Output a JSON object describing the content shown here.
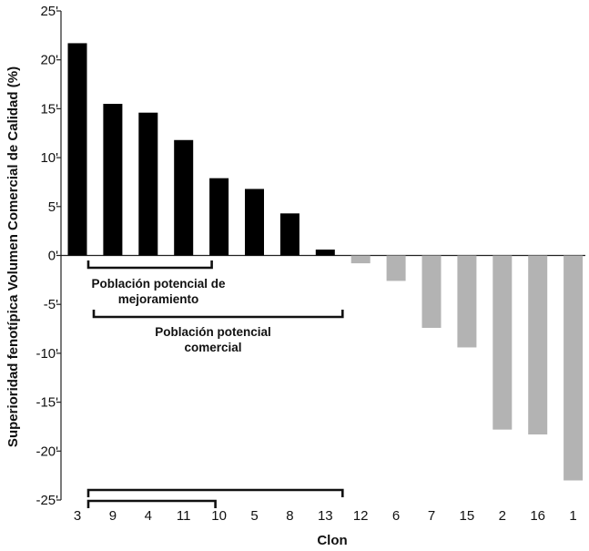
{
  "chart_data": {
    "type": "bar",
    "xlabel": "Clon",
    "ylabel": "Superioridad fenotípica Volumen Comercial de Calidad (%)",
    "ylim": [
      -25,
      25
    ],
    "yticks": [
      25,
      20,
      15,
      10,
      5,
      0,
      -5,
      -10,
      -15,
      -20,
      -25
    ],
    "ytick_labels": [
      "25'",
      "20'",
      "15'",
      "10'",
      "5'",
      "0'",
      "-5'",
      "-10'",
      "-15'",
      "-20'",
      "-25'"
    ],
    "categories": [
      "3",
      "9",
      "4",
      "11",
      "10",
      "5",
      "8",
      "13",
      "12",
      "6",
      "7",
      "15",
      "2",
      "16",
      "1"
    ],
    "values": [
      21.7,
      15.5,
      14.6,
      11.8,
      7.9,
      6.8,
      4.3,
      0.6,
      -0.8,
      -2.6,
      -7.4,
      -9.4,
      -17.8,
      -18.3,
      -23.0
    ],
    "colors": {
      "positive": "#000000",
      "negative": "#b3b3b3"
    },
    "grid": false,
    "annotations": [
      {
        "text_lines": [
          "Población potencial de",
          "mejoramiento"
        ],
        "from": "3",
        "to": "10"
      },
      {
        "text_lines": [
          "Población potencial",
          "comercial"
        ],
        "from": "3",
        "to": "13"
      }
    ]
  }
}
